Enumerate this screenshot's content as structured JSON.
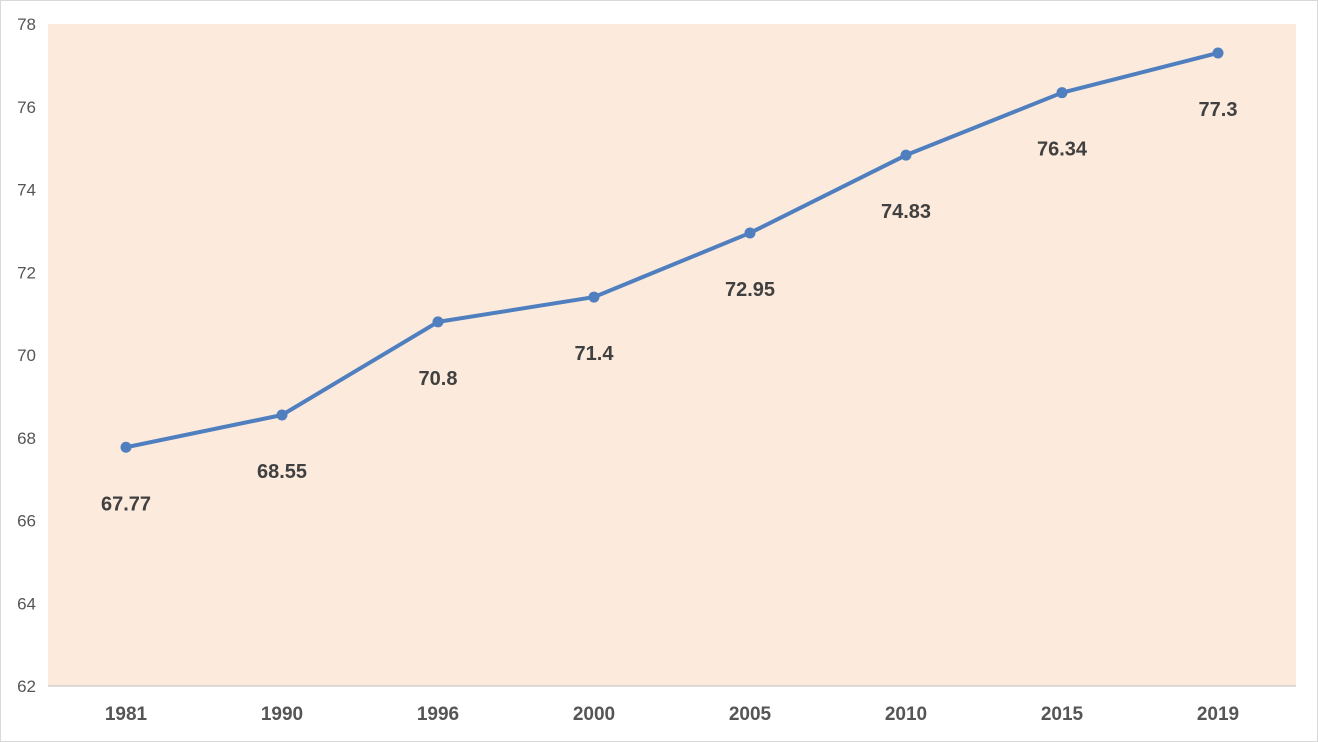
{
  "chart_data": {
    "type": "line",
    "categories": [
      "1981",
      "1990",
      "1996",
      "2000",
      "2005",
      "2010",
      "2015",
      "2019"
    ],
    "series": [
      {
        "values": [
          67.77,
          68.55,
          70.8,
          71.4,
          72.95,
          74.83,
          76.34,
          77.3
        ],
        "data_labels": [
          "67.77",
          "68.55",
          "70.8",
          "71.4",
          "72.95",
          "74.83",
          "76.34",
          "77.3"
        ]
      }
    ],
    "y_ticks": [
      "62",
      "64",
      "66",
      "68",
      "70",
      "72",
      "74",
      "76",
      "78"
    ],
    "ylim": [
      62,
      78
    ],
    "title": "",
    "xlabel": "",
    "ylabel": "",
    "grid": false,
    "legend": "none",
    "colors": {
      "plot_background": "#FCEADC",
      "line": "#4F7FBF",
      "axis": "#BFBFBF",
      "border": "#D9D9D9"
    }
  }
}
